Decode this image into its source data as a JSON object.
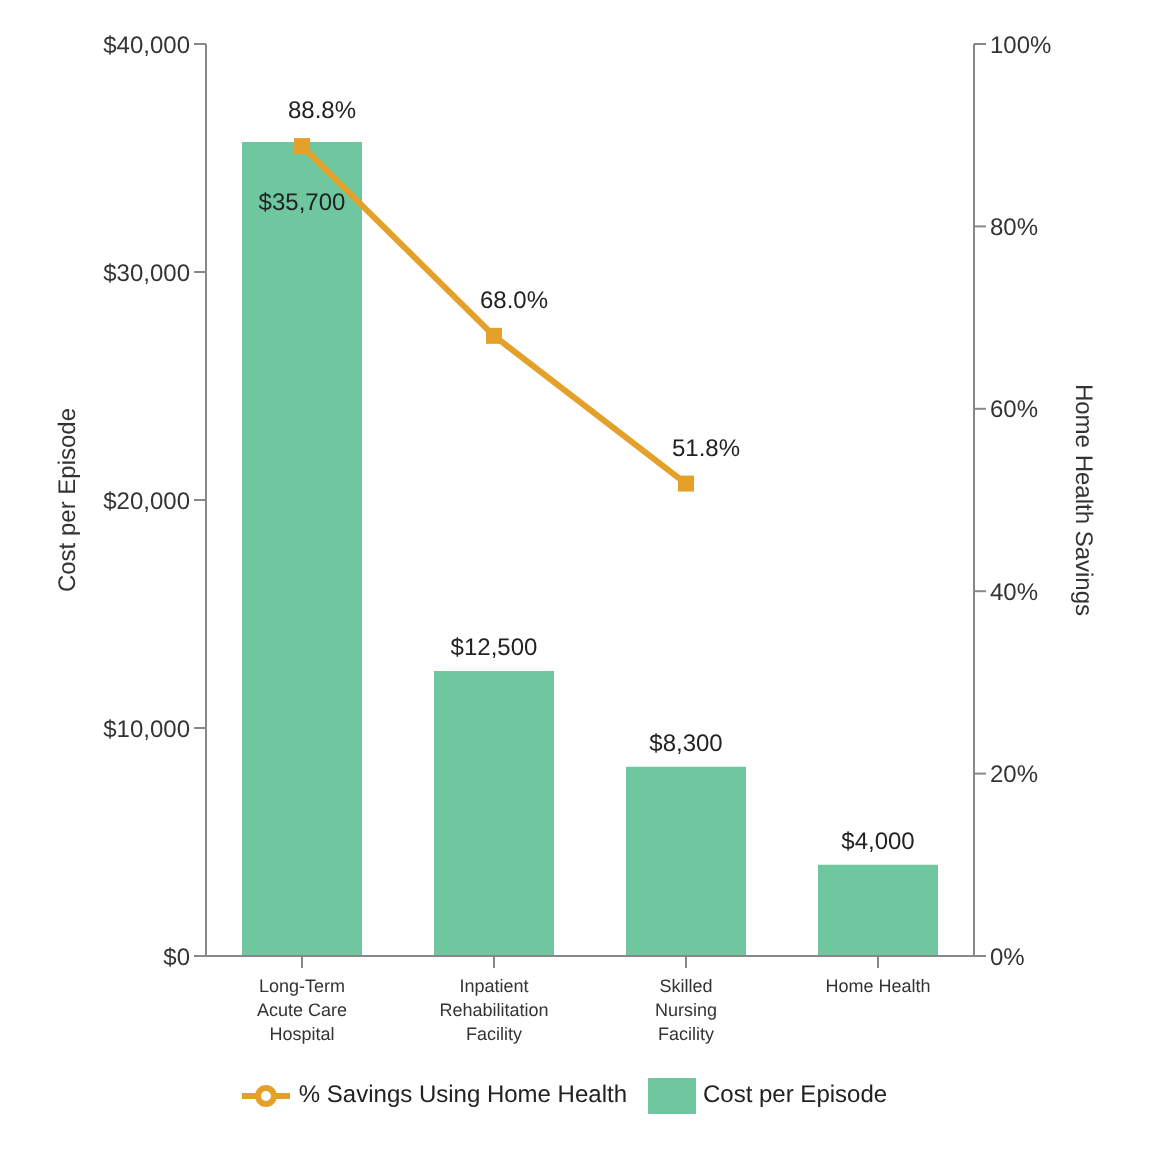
{
  "chart_data": {
    "type": "bar",
    "categories": [
      "Long-Term Acute Care Hospital",
      "Inpatient Rehabilitation Facility",
      "Skilled Nursing Facility",
      "Home Health"
    ],
    "series": [
      {
        "name": "Cost per Episode",
        "color": "#6fc7a0",
        "values": [
          35700,
          12500,
          8300,
          4000
        ],
        "value_labels": [
          "$35,700",
          "$12,500",
          "$8,300",
          "$4,000"
        ]
      },
      {
        "name": "% Savings Using Home Health",
        "type": "line",
        "axis": "y2",
        "color": "#e4a12a",
        "values": [
          88.8,
          68.0,
          51.8,
          null
        ],
        "value_labels": [
          "88.8%",
          "68.0%",
          "51.8%",
          null
        ]
      }
    ],
    "ylabel": "Cost per Episode",
    "y2label": "Home Health Savings",
    "ylim": [
      0,
      40000
    ],
    "yticks": [
      {
        "value": 0,
        "label": "$0"
      },
      {
        "value": 10000,
        "label": "$10,000"
      },
      {
        "value": 20000,
        "label": "$20,000"
      },
      {
        "value": 30000,
        "label": "$30,000"
      },
      {
        "value": 40000,
        "label": "$40,000"
      }
    ],
    "y2lim": [
      0,
      100
    ],
    "y2ticks": [
      {
        "value": 0,
        "label": "0%"
      },
      {
        "value": 20,
        "label": "20%"
      },
      {
        "value": 40,
        "label": "40%"
      },
      {
        "value": 60,
        "label": "60%"
      },
      {
        "value": 80,
        "label": "80%"
      },
      {
        "value": 100,
        "label": "100%"
      }
    ],
    "marker": "square",
    "legend": "bottom",
    "grid": false
  }
}
